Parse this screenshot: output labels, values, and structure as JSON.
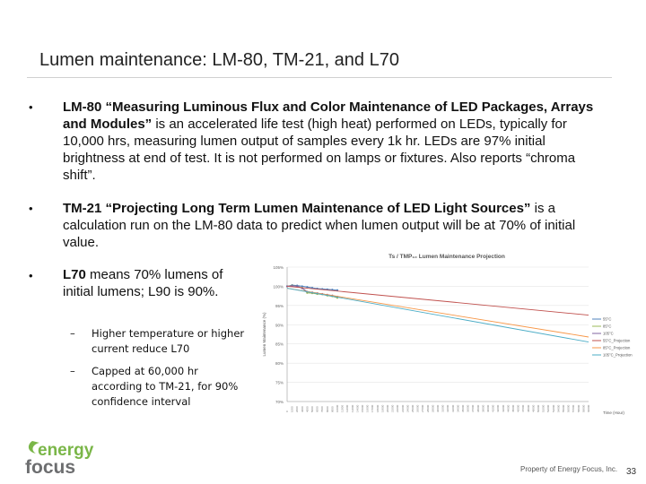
{
  "slide": {
    "title": "Lumen maintenance: LM-80, TM-21, and L70",
    "bullets": [
      {
        "bold": "LM-80 “Measuring Luminous Flux and Color Maintenance of LED Packages, Arrays and Modules”",
        "text": " is an accelerated life test (high heat) performed on LEDs, typically for 10,000 hrs, measuring lumen output of samples every 1k hr. LEDs are 97% initial brightness at end of test. It is not performed on lamps or fixtures. Also reports “chroma shift”."
      },
      {
        "bold": "TM-21 “Projecting Long Term Lumen Maintenance of LED Light Sources”",
        "text": " is a calculation run on the LM-80 data to predict when lumen output will be at 70% of initial value."
      },
      {
        "bold": "L70",
        "text": " means 70% lumens of initial lumens; L90 is 90%."
      }
    ],
    "subbullets": [
      "Higher temperature or higher current reduce L70",
      "Capped at 60,000 hr according to TM-21, for 90% confidence interval"
    ],
    "bullet_symbol": "•",
    "dash_symbol": "–",
    "footer": "Property of Energy Focus, Inc.",
    "page_number": "33",
    "logo": {
      "top": "energy",
      "bottom": "focus",
      "icon": "energy-focus-logo",
      "green": "#7ab648",
      "gray": "#6d6e70"
    }
  },
  "chart_data": {
    "type": "line",
    "title": "Ts / TMP₁₀ Lumen Maintenance Projection",
    "ylabel": "Lumen Maintenance (%)",
    "xlabel": "Time (Hour)",
    "ylim": [
      70,
      105
    ],
    "yticks": [
      "105%",
      "100%",
      "95%",
      "90%",
      "85%",
      "80%",
      "75%",
      "70%"
    ],
    "xlim": [
      0,
      60000
    ],
    "series": [
      {
        "name": "55°C",
        "color": "#4f81bd",
        "x": [
          0,
          1000,
          2000,
          3000,
          4000,
          5000,
          6000,
          7000,
          8000,
          9000,
          10000
        ],
        "y": [
          100,
          100.3,
          100.2,
          100.0,
          99.8,
          99.6,
          99.4,
          99.3,
          99.2,
          99.1,
          99.0
        ]
      },
      {
        "name": "85°C",
        "color": "#9bbb59",
        "x": [
          0,
          1000,
          2000,
          3000,
          4000,
          5000,
          6000,
          7000,
          8000,
          9000,
          10000
        ],
        "y": [
          100,
          100.2,
          100.0,
          99.6,
          98.3,
          98.2,
          98.0,
          97.9,
          97.6,
          97.4,
          97.0
        ]
      },
      {
        "name": "105°C",
        "color": "#8064a2",
        "x": [
          0,
          1000,
          2000,
          3000,
          4000,
          5000,
          6000,
          7000,
          8000,
          9000,
          10000
        ],
        "y": [
          100,
          100.1,
          100.0,
          99.5,
          98.6,
          98.4,
          98.2,
          98.0,
          97.8,
          97.6,
          97.3
        ]
      },
      {
        "name": "55°C_Projection",
        "color": "#c0504d",
        "x": [
          0,
          60000
        ],
        "y": [
          100,
          92.5
        ]
      },
      {
        "name": "85°C_Projection",
        "color": "#f79646",
        "x": [
          0,
          60000
        ],
        "y": [
          99.5,
          86.8
        ]
      },
      {
        "name": "105°C_Projection",
        "color": "#4bacc6",
        "x": [
          0,
          60000
        ],
        "y": [
          99.5,
          85.5
        ]
      }
    ]
  }
}
